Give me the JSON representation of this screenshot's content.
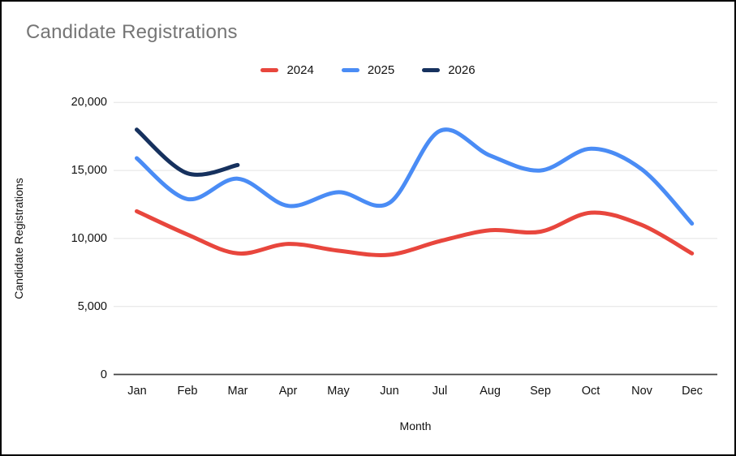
{
  "title": "Candidate Registrations",
  "chart_data": {
    "type": "line",
    "line_style": "smooth",
    "title": "Candidate Registrations",
    "xlabel": "Month",
    "ylabel": "Candidate Registrations",
    "categories": [
      "Jan",
      "Feb",
      "Mar",
      "Apr",
      "May",
      "Jun",
      "Jul",
      "Aug",
      "Sep",
      "Oct",
      "Nov",
      "Dec"
    ],
    "ylim": [
      0,
      20000
    ],
    "y_ticks": [
      20000,
      15000,
      10000,
      5000,
      0
    ],
    "y_tick_labels": [
      "20,000",
      "15,000",
      "10,000",
      "5,000",
      "0"
    ],
    "grid": true,
    "legend_position": "top",
    "series": [
      {
        "name": "2024",
        "color": "#E8463D",
        "values": [
          12000,
          10300,
          8900,
          9600,
          9100,
          8800,
          9800,
          10600,
          10500,
          11900,
          11000,
          8900
        ]
      },
      {
        "name": "2025",
        "color": "#4A8CF5",
        "values": [
          15900,
          12900,
          14400,
          12400,
          13400,
          12600,
          17900,
          16100,
          15000,
          16600,
          15100,
          11100
        ]
      },
      {
        "name": "2026",
        "color": "#16315E",
        "values": [
          18000,
          14800,
          15400
        ]
      }
    ]
  },
  "colors": {
    "title_text": "#757575",
    "tick_text": "#111111",
    "gridline": "#E3E3E3",
    "zero_axis": "#424242",
    "background": "#FFFFFF",
    "border": "#000000"
  }
}
